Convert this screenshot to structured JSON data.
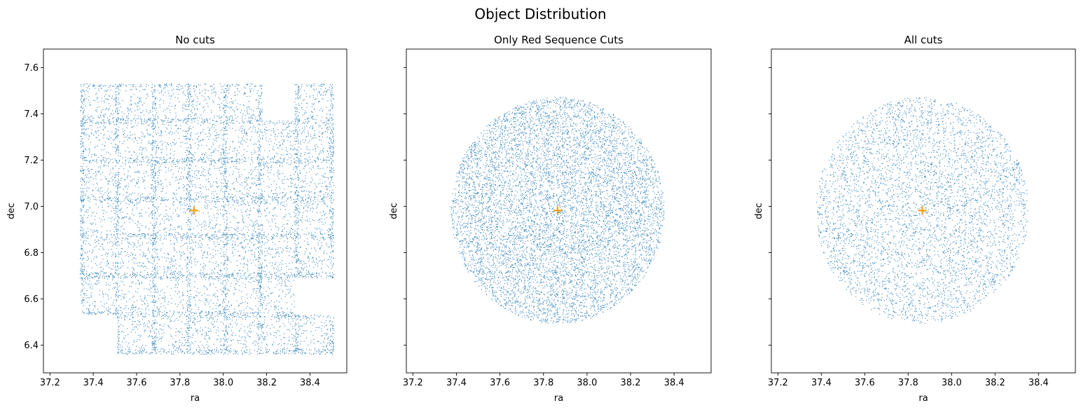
{
  "figure": {
    "title": "Object Distribution"
  },
  "chart_data": [
    {
      "type": "scatter",
      "title": "No cuts",
      "xlabel": "ra",
      "ylabel": "dec",
      "xlim": [
        37.17,
        38.57
      ],
      "ylim": [
        6.28,
        7.68
      ],
      "xticks": [
        37.2,
        37.4,
        37.6,
        37.8,
        38.0,
        38.2,
        38.4
      ],
      "yticks": [
        6.4,
        6.6,
        6.8,
        7.0,
        7.2,
        7.4,
        7.6
      ],
      "show_ytick_labels": true,
      "point_color": "#1f77b4",
      "footprint": "rectangular survey tiles: ra 37.34–38.51, dec 6.36–7.53, minus a notch at ra 38.18–38.33 / dec 7.37–7.53 and missing corners below dec 6.53 for ra < 37.51 and above ra 38.33",
      "center_marker": {
        "ra": 37.865,
        "dec": 6.982,
        "color": "#ff9f0e",
        "marker": "plus"
      }
    },
    {
      "type": "scatter",
      "title": "Only Red Sequence Cuts",
      "xlabel": "ra",
      "ylabel": "dec",
      "xlim": [
        37.17,
        38.57
      ],
      "ylim": [
        6.28,
        7.68
      ],
      "xticks": [
        37.2,
        37.4,
        37.6,
        37.8,
        38.0,
        38.2,
        38.4
      ],
      "yticks": [
        6.4,
        6.6,
        6.8,
        7.0,
        7.2,
        7.4,
        7.6
      ],
      "show_ytick_labels": false,
      "point_color": "#1f77b4",
      "footprint": "circle of radius ~0.49 deg centered at (37.865, 6.982)",
      "center_marker": {
        "ra": 37.865,
        "dec": 6.982,
        "color": "#ff9f0e",
        "marker": "plus"
      }
    },
    {
      "type": "scatter",
      "title": "All cuts",
      "xlabel": "ra",
      "ylabel": "dec",
      "xlim": [
        37.17,
        38.57
      ],
      "ylim": [
        6.28,
        7.68
      ],
      "xticks": [
        37.2,
        37.4,
        37.6,
        37.8,
        38.0,
        38.2,
        38.4
      ],
      "yticks": [
        6.4,
        6.6,
        6.8,
        7.0,
        7.2,
        7.4,
        7.6
      ],
      "show_ytick_labels": false,
      "point_color": "#1f77b4",
      "footprint": "circle of radius ~0.49 deg centered at (37.865, 6.982), sparser sampling",
      "center_marker": {
        "ra": 37.865,
        "dec": 6.982,
        "color": "#ff9f0e",
        "marker": "plus"
      }
    }
  ]
}
